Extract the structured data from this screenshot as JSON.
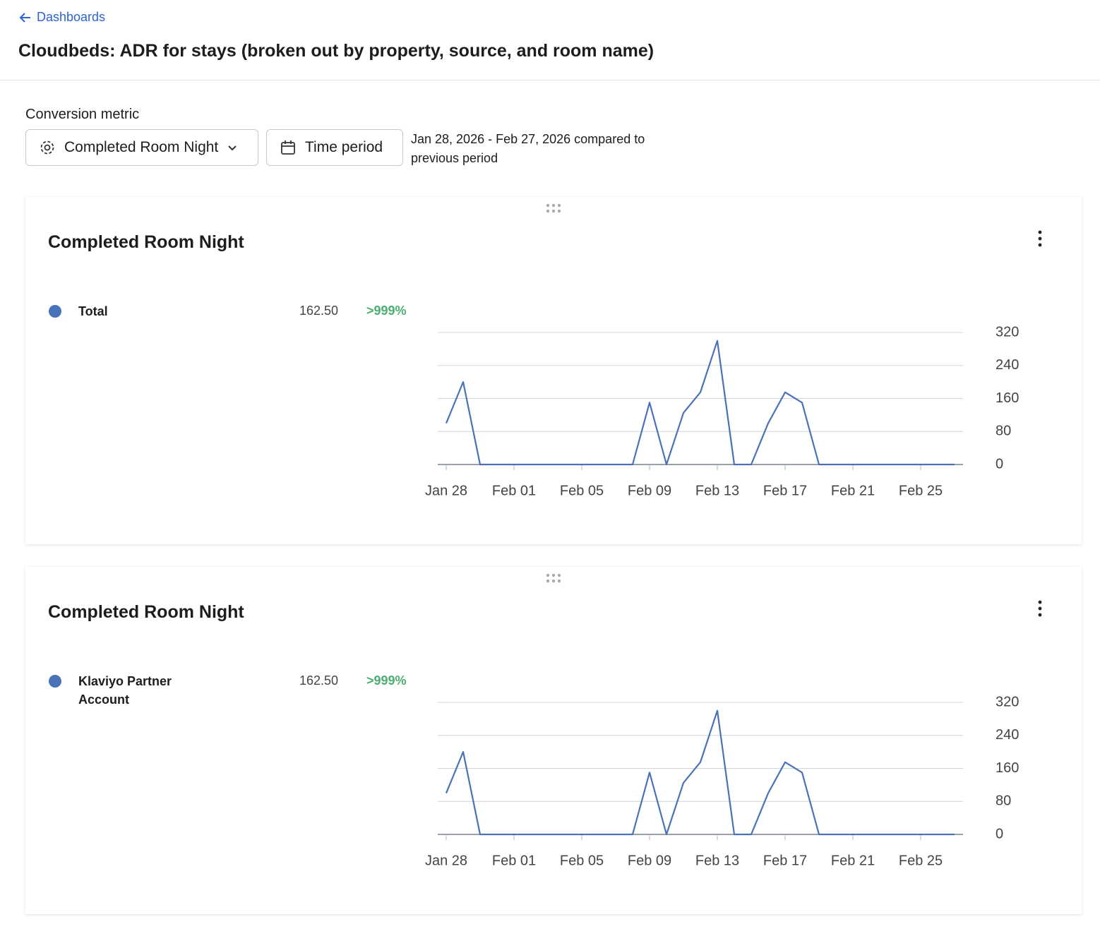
{
  "header": {
    "back_link": "Dashboards",
    "title": "Cloudbeds: ADR for stays (broken out by property, source, and room name)"
  },
  "filters": {
    "label": "Conversion metric",
    "metric": "Completed Room Night",
    "time_button": "Time period",
    "date_range": "Jan 28, 2026 - Feb 27, 2026 compared to previous period"
  },
  "chart_data": [
    {
      "type": "line",
      "title": "Completed Room Night",
      "categories": [
        "Jan 28",
        null,
        null,
        null,
        "Feb 01",
        null,
        null,
        null,
        "Feb 05",
        null,
        null,
        null,
        "Feb 09",
        null,
        null,
        null,
        "Feb 13",
        null,
        null,
        null,
        "Feb 17",
        null,
        null,
        null,
        "Feb 21",
        null,
        null,
        null,
        "Feb 25",
        null,
        null
      ],
      "series": [
        {
          "name": "Total",
          "color": "#4a72b8",
          "summary": "162.50",
          "change": ">999%",
          "values": [
            100,
            200,
            0,
            0,
            0,
            0,
            0,
            0,
            0,
            0,
            0,
            0,
            150,
            0,
            125,
            175,
            300,
            0,
            0,
            100,
            175,
            150,
            0,
            0,
            0,
            0,
            0,
            0,
            0,
            0,
            0
          ]
        }
      ],
      "ylim": [
        0,
        320
      ],
      "yticks": [
        0,
        80,
        160,
        240,
        320
      ],
      "grid": true
    },
    {
      "type": "line",
      "title": "Completed Room Night",
      "categories": [
        "Jan 28",
        null,
        null,
        null,
        "Feb 01",
        null,
        null,
        null,
        "Feb 05",
        null,
        null,
        null,
        "Feb 09",
        null,
        null,
        null,
        "Feb 13",
        null,
        null,
        null,
        "Feb 17",
        null,
        null,
        null,
        "Feb 21",
        null,
        null,
        null,
        "Feb 25",
        null,
        null
      ],
      "series": [
        {
          "name": "Klaviyo Partner Account",
          "color": "#4a72b8",
          "summary": "162.50",
          "change": ">999%",
          "values": [
            100,
            200,
            0,
            0,
            0,
            0,
            0,
            0,
            0,
            0,
            0,
            0,
            150,
            0,
            125,
            175,
            300,
            0,
            0,
            100,
            175,
            150,
            0,
            0,
            0,
            0,
            0,
            0,
            0,
            0,
            0
          ]
        }
      ],
      "ylim": [
        0,
        320
      ],
      "yticks": [
        0,
        80,
        160,
        240,
        320
      ],
      "grid": true
    }
  ]
}
